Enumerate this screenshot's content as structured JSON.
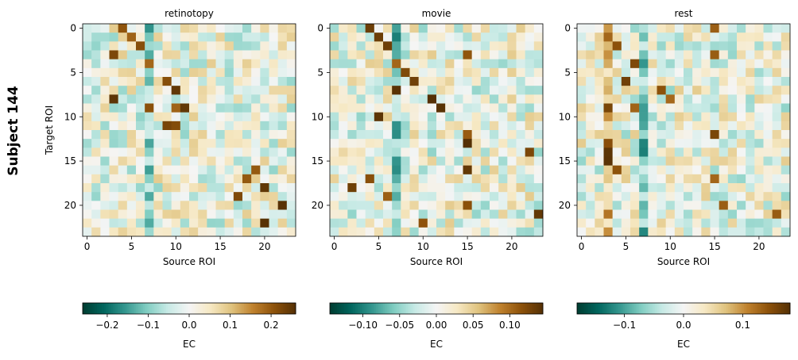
{
  "figure": {
    "suptitle": "Subject 144"
  },
  "chart_data": [
    {
      "type": "heatmap",
      "title": "retinotopy",
      "xlabel": "Source ROI",
      "ylabel": "Target ROI",
      "n": 24,
      "xticks": [
        0,
        5,
        10,
        15,
        20
      ],
      "yticks": [
        0,
        5,
        10,
        15,
        20
      ],
      "seed": 144,
      "strong": [
        [
          0,
          4
        ],
        [
          1,
          5
        ],
        [
          2,
          6
        ],
        [
          3,
          3
        ],
        [
          4,
          7
        ],
        [
          6,
          9
        ],
        [
          7,
          10
        ],
        [
          8,
          3
        ],
        [
          9,
          7
        ],
        [
          9,
          10
        ],
        [
          9,
          11
        ],
        [
          11,
          9
        ],
        [
          11,
          10
        ],
        [
          16,
          19
        ],
        [
          17,
          18
        ],
        [
          18,
          20
        ],
        [
          19,
          17
        ],
        [
          20,
          22
        ],
        [
          22,
          20
        ]
      ],
      "negative_column": 7,
      "colorbar": {
        "vmin": -0.26,
        "vmax": 0.26,
        "ticks": [
          -0.2,
          -0.1,
          0.0,
          0.1,
          0.2
        ],
        "tick_labels": [
          "−0.2",
          "−0.1",
          "0.0",
          "0.1",
          "0.2"
        ],
        "label": "EC"
      }
    },
    {
      "type": "heatmap",
      "title": "movie",
      "xlabel": "Source ROI",
      "ylabel": "",
      "n": 24,
      "xticks": [
        0,
        5,
        10,
        15,
        20
      ],
      "yticks": [
        0,
        5,
        10,
        15,
        20
      ],
      "seed": 2144,
      "strong": [
        [
          0,
          4
        ],
        [
          1,
          5
        ],
        [
          2,
          6
        ],
        [
          3,
          15
        ],
        [
          4,
          7
        ],
        [
          5,
          8
        ],
        [
          6,
          9
        ],
        [
          7,
          7
        ],
        [
          8,
          11
        ],
        [
          9,
          12
        ],
        [
          10,
          5
        ],
        [
          12,
          15
        ],
        [
          13,
          15
        ],
        [
          14,
          22
        ],
        [
          16,
          15
        ],
        [
          17,
          4
        ],
        [
          18,
          2
        ],
        [
          19,
          6
        ],
        [
          20,
          15
        ],
        [
          21,
          23
        ],
        [
          22,
          10
        ]
      ],
      "negative_column": 7,
      "colorbar": {
        "vmin": -0.145,
        "vmax": 0.145,
        "ticks": [
          -0.1,
          -0.05,
          0.0,
          0.05,
          0.1
        ],
        "tick_labels": [
          "−0.10",
          "−0.05",
          "0.00",
          "0.05",
          "0.10"
        ],
        "label": "EC"
      }
    },
    {
      "type": "heatmap",
      "title": "rest",
      "xlabel": "Source ROI",
      "ylabel": "",
      "n": 24,
      "xticks": [
        0,
        5,
        10,
        15,
        20
      ],
      "yticks": [
        0,
        5,
        10,
        15,
        20
      ],
      "seed": 3144,
      "strong": [
        [
          0,
          15
        ],
        [
          1,
          3
        ],
        [
          2,
          4
        ],
        [
          3,
          15
        ],
        [
          4,
          6
        ],
        [
          6,
          5
        ],
        [
          7,
          9
        ],
        [
          8,
          10
        ],
        [
          9,
          3
        ],
        [
          9,
          6
        ],
        [
          12,
          15
        ],
        [
          13,
          3
        ],
        [
          14,
          3
        ],
        [
          15,
          3
        ],
        [
          16,
          4
        ],
        [
          17,
          15
        ],
        [
          20,
          16
        ],
        [
          21,
          22
        ]
      ],
      "strong_column": 3,
      "negative_column": 7,
      "colorbar": {
        "vmin": -0.18,
        "vmax": 0.18,
        "ticks": [
          -0.1,
          0.0,
          0.1
        ],
        "tick_labels": [
          "−0.1",
          "0.0",
          "0.1"
        ],
        "label": "EC"
      }
    }
  ]
}
